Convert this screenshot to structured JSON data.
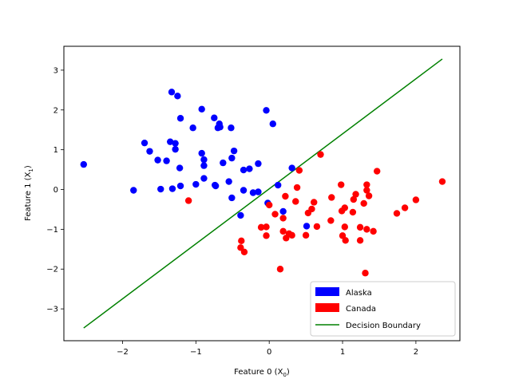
{
  "chart_data": {
    "type": "scatter",
    "title": "",
    "xlabel": "Feature 0 (X",
    "xlabel_sub": "0",
    "xlabel_close": ")",
    "ylabel": "Feature 1 (X",
    "ylabel_sub": "1",
    "ylabel_close": ")",
    "xlim": [
      -2.8,
      2.6
    ],
    "ylim": [
      -3.8,
      3.6
    ],
    "xticks": [
      -2,
      -1,
      0,
      1,
      2
    ],
    "yticks": [
      -3,
      -2,
      -1,
      0,
      1,
      2,
      3
    ],
    "grid": false,
    "legend_position": "lower-right",
    "series": [
      {
        "name": "Alaska",
        "color": "#0000ff",
        "points": [
          [
            -2.53,
            0.63
          ],
          [
            -1.85,
            -0.02
          ],
          [
            -1.7,
            1.17
          ],
          [
            -1.63,
            0.96
          ],
          [
            -1.52,
            0.74
          ],
          [
            -1.48,
            0.01
          ],
          [
            -1.4,
            0.72
          ],
          [
            -1.35,
            1.2
          ],
          [
            -1.32,
            0.02
          ],
          [
            -1.33,
            2.45
          ],
          [
            -1.28,
            1.16
          ],
          [
            -1.28,
            1.01
          ],
          [
            -1.25,
            2.35
          ],
          [
            -1.22,
            0.54
          ],
          [
            -1.21,
            0.09
          ],
          [
            -1.21,
            1.79
          ],
          [
            -1.04,
            1.55
          ],
          [
            -1.0,
            0.13
          ],
          [
            -0.92,
            2.02
          ],
          [
            -0.92,
            0.91
          ],
          [
            -0.89,
            0.75
          ],
          [
            -0.89,
            0.6
          ],
          [
            -0.89,
            0.28
          ],
          [
            -0.75,
            1.8
          ],
          [
            -0.74,
            0.11
          ],
          [
            -0.73,
            0.09
          ],
          [
            -0.7,
            1.55
          ],
          [
            -0.68,
            1.65
          ],
          [
            -0.67,
            1.57
          ],
          [
            -0.63,
            0.67
          ],
          [
            -0.55,
            0.2
          ],
          [
            -0.52,
            1.55
          ],
          [
            -0.51,
            0.79
          ],
          [
            -0.51,
            -0.21
          ],
          [
            -0.48,
            0.97
          ],
          [
            -0.39,
            -0.65
          ],
          [
            -0.35,
            0.49
          ],
          [
            -0.35,
            -0.02
          ],
          [
            -0.27,
            0.52
          ],
          [
            -0.22,
            -0.08
          ],
          [
            -0.15,
            -0.06
          ],
          [
            -0.15,
            0.65
          ],
          [
            -0.04,
            1.99
          ],
          [
            -0.02,
            -0.34
          ],
          [
            0.05,
            1.65
          ],
          [
            0.12,
            0.11
          ],
          [
            0.19,
            -0.55
          ],
          [
            0.31,
            0.54
          ],
          [
            0.51,
            -0.92
          ]
        ]
      },
      {
        "name": "Canada",
        "color": "#ff0000",
        "points": [
          [
            -1.1,
            -0.28
          ],
          [
            -0.38,
            -1.29
          ],
          [
            -0.39,
            -1.46
          ],
          [
            -0.34,
            -1.57
          ],
          [
            -0.11,
            -0.95
          ],
          [
            -0.04,
            -0.94
          ],
          [
            -0.04,
            -1.16
          ],
          [
            0.0,
            -0.39
          ],
          [
            0.08,
            -0.62
          ],
          [
            0.15,
            -2.0
          ],
          [
            0.19,
            -0.72
          ],
          [
            0.19,
            -1.05
          ],
          [
            0.22,
            -0.17
          ],
          [
            0.23,
            -1.22
          ],
          [
            0.27,
            -1.11
          ],
          [
            0.31,
            -1.15
          ],
          [
            0.36,
            -0.3
          ],
          [
            0.38,
            0.05
          ],
          [
            0.41,
            0.48
          ],
          [
            0.5,
            -1.15
          ],
          [
            0.53,
            -0.59
          ],
          [
            0.58,
            -0.49
          ],
          [
            0.61,
            -0.32
          ],
          [
            0.65,
            -0.93
          ],
          [
            0.7,
            0.88
          ],
          [
            0.84,
            -0.78
          ],
          [
            0.85,
            -0.2
          ],
          [
            0.98,
            0.12
          ],
          [
            0.99,
            -0.54
          ],
          [
            1.0,
            -1.16
          ],
          [
            1.03,
            -0.46
          ],
          [
            1.03,
            -0.94
          ],
          [
            1.04,
            -1.28
          ],
          [
            1.14,
            -0.57
          ],
          [
            1.15,
            -0.25
          ],
          [
            1.18,
            -0.12
          ],
          [
            1.24,
            -0.95
          ],
          [
            1.24,
            -1.28
          ],
          [
            1.29,
            -0.35
          ],
          [
            1.31,
            -2.1
          ],
          [
            1.33,
            0.12
          ],
          [
            1.33,
            -1.0
          ],
          [
            1.33,
            -0.02
          ],
          [
            1.36,
            -0.16
          ],
          [
            1.42,
            -1.05
          ],
          [
            1.47,
            0.46
          ],
          [
            1.74,
            -0.6
          ],
          [
            1.85,
            -0.46
          ],
          [
            2.0,
            -0.26
          ],
          [
            2.36,
            0.2
          ]
        ]
      },
      {
        "name": "Decision Boundary",
        "type": "line",
        "color": "#008000",
        "points": [
          [
            -2.53,
            -3.48
          ],
          [
            2.36,
            3.28
          ]
        ]
      }
    ]
  }
}
